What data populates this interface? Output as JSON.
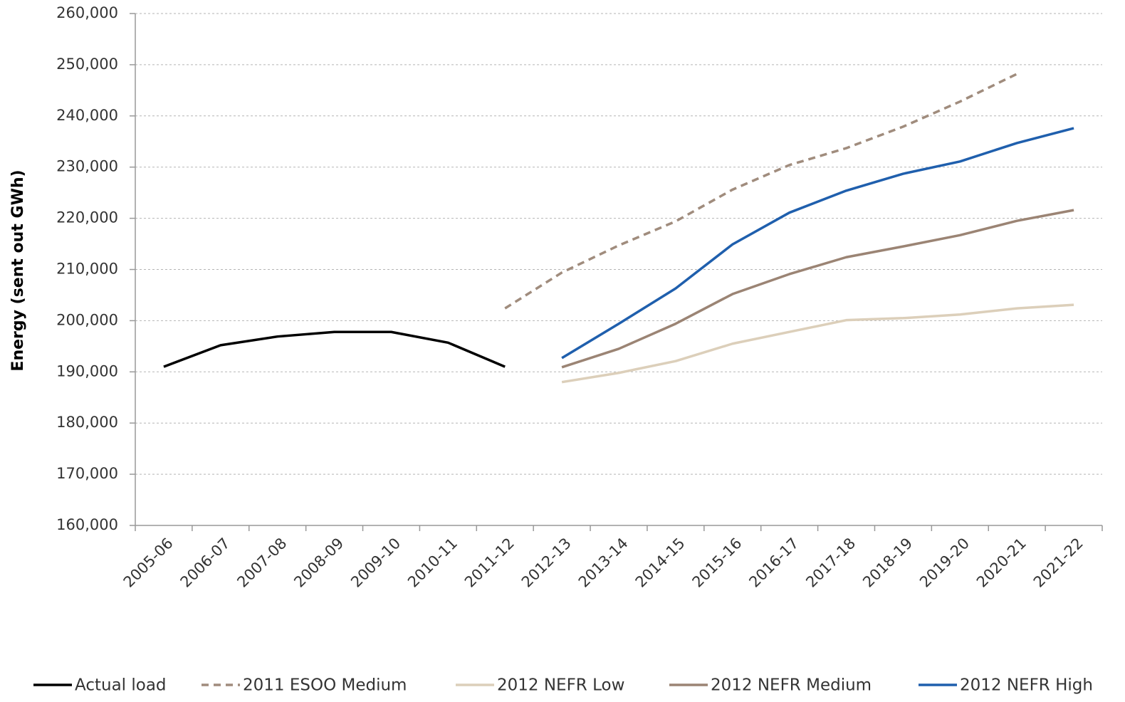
{
  "chart_data": {
    "type": "line",
    "y_label": "Energy (sent out GWh)",
    "categories": [
      "2005-06",
      "2006-07",
      "2007-08",
      "2008-09",
      "2009-10",
      "2010-11",
      "2011-12",
      "2012-13",
      "2013-14",
      "2014-15",
      "2015-16",
      "2016-17",
      "2017-18",
      "2018-19",
      "2019-20",
      "2020-21",
      "2021-22"
    ],
    "series": [
      {
        "name": "Actual load",
        "color": "#000000",
        "linestyle": "solid",
        "values": [
          191000,
          195200,
          196900,
          197800,
          197800,
          195700,
          191000,
          null,
          null,
          null,
          null,
          null,
          null,
          null,
          null,
          null,
          null
        ]
      },
      {
        "name": "2011 ESOO Medium",
        "color": "#a08c7d",
        "linestyle": "dashed",
        "values": [
          null,
          null,
          null,
          null,
          null,
          null,
          202400,
          209400,
          214700,
          219400,
          225600,
          230400,
          233700,
          237900,
          242800,
          248200,
          null
        ]
      },
      {
        "name": "2012 NEFR Low",
        "color": "#dccfba",
        "linestyle": "solid",
        "values": [
          null,
          null,
          null,
          null,
          null,
          null,
          null,
          188000,
          189800,
          192100,
          195500,
          197800,
          200100,
          200500,
          201200,
          202400,
          203100
        ]
      },
      {
        "name": "2012 NEFR Medium",
        "color": "#9b8474",
        "linestyle": "solid",
        "values": [
          null,
          null,
          null,
          null,
          null,
          null,
          null,
          190900,
          194500,
          199400,
          205200,
          209100,
          212400,
          214500,
          216700,
          219500,
          221600
        ]
      },
      {
        "name": "2012 NEFR High",
        "color": "#1f5fad",
        "linestyle": "solid",
        "values": [
          null,
          null,
          null,
          null,
          null,
          null,
          null,
          192700,
          199400,
          206300,
          214900,
          221100,
          225400,
          228700,
          231100,
          234700,
          237600
        ]
      }
    ],
    "ylim": [
      160000,
      260000
    ],
    "yticks": [
      {
        "value": 160000,
        "label": "160,000"
      },
      {
        "value": 170000,
        "label": "170,000"
      },
      {
        "value": 180000,
        "label": "180,000"
      },
      {
        "value": 190000,
        "label": "190,000"
      },
      {
        "value": 200000,
        "label": "200,000"
      },
      {
        "value": 210000,
        "label": "210,000"
      },
      {
        "value": 220000,
        "label": "220,000"
      },
      {
        "value": 230000,
        "label": "230,000"
      },
      {
        "value": 240000,
        "label": "240,000"
      },
      {
        "value": 250000,
        "label": "250,000"
      },
      {
        "value": 260000,
        "label": "260,000"
      }
    ],
    "grid": true,
    "legend": "bottom"
  }
}
